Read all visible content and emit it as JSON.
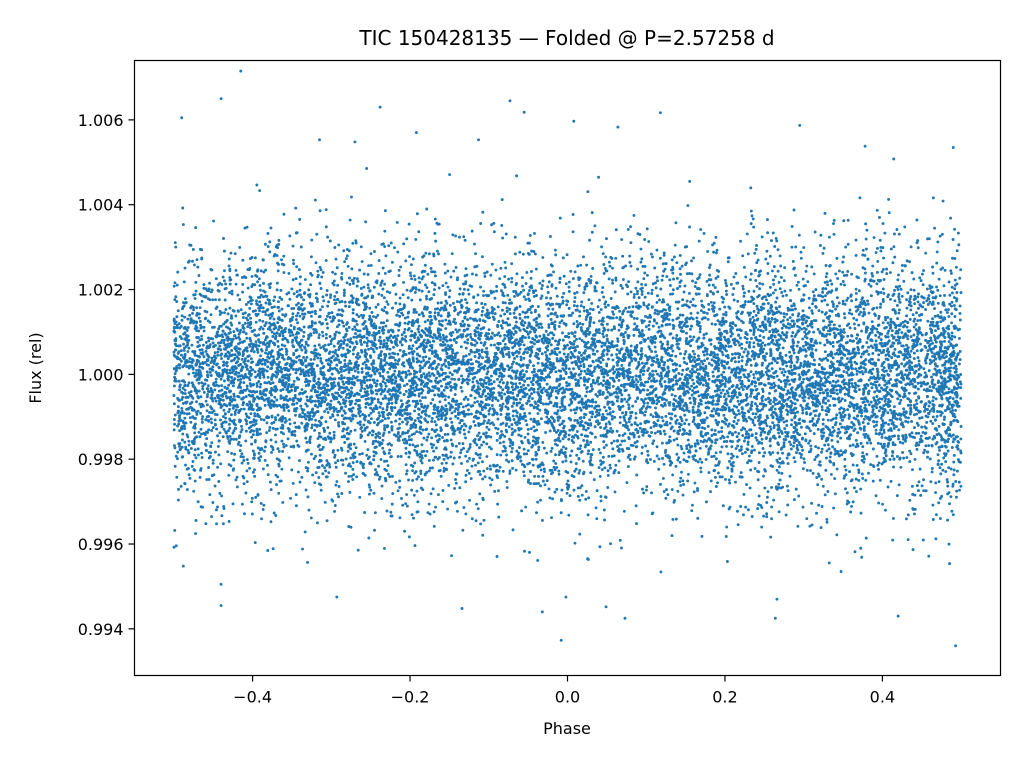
{
  "chart_data": {
    "type": "scatter",
    "title": "TIC 150428135 — Folded @ P=2.57258 d",
    "xlabel": "Phase",
    "ylabel": "Flux (rel)",
    "xlim": [
      -0.55,
      0.55
    ],
    "ylim": [
      0.9929,
      1.0074
    ],
    "x_ticks": [
      -0.4,
      -0.2,
      0.0,
      0.2,
      0.4
    ],
    "x_tick_labels": [
      "−0.4",
      "−0.2",
      "0.0",
      "0.2",
      "0.4"
    ],
    "y_ticks": [
      0.994,
      0.996,
      0.998,
      1.0,
      1.002,
      1.004,
      1.006
    ],
    "y_tick_labels": [
      "0.994",
      "0.996",
      "0.998",
      "1.000",
      "1.002",
      "1.004",
      "1.006"
    ],
    "grid": false,
    "legend": "none",
    "marker_color": "#1f77b4",
    "series": [
      {
        "points_description": "dense cloud of ~12000 folded photometric measurements, flat at 1.000 with scatter σ≈0.0014",
        "phase_range": [
          -0.5,
          0.5
        ],
        "flux_center": 1.0,
        "flux_scatter_sigma": 0.0014,
        "n_points": 12000,
        "outliers": [
          [
            -0.415,
            1.00715
          ],
          [
            -0.44,
            1.0065
          ],
          [
            -0.49,
            1.00605
          ],
          [
            -0.238,
            1.0063
          ],
          [
            -0.073,
            1.00645
          ],
          [
            -0.055,
            1.00618
          ],
          [
            0.008,
            1.00597
          ],
          [
            0.064,
            1.00583
          ],
          [
            0.118,
            1.00617
          ],
          [
            0.295,
            1.00587
          ],
          [
            0.378,
            1.00538
          ],
          [
            0.49,
            1.00535
          ],
          [
            -0.315,
            1.00553
          ],
          [
            -0.27,
            1.00548
          ],
          [
            -0.192,
            1.0057
          ],
          [
            -0.113,
            1.00553
          ],
          [
            -0.44,
            0.99455
          ],
          [
            -0.44,
            0.99505
          ],
          [
            -0.134,
            0.99448
          ],
          [
            -0.032,
            0.9944
          ],
          [
            -0.008,
            0.99373
          ],
          [
            -0.002,
            0.99475
          ],
          [
            0.049,
            0.99452
          ],
          [
            0.073,
            0.99425
          ],
          [
            0.264,
            0.99425
          ],
          [
            0.266,
            0.9947
          ],
          [
            0.42,
            0.9943
          ],
          [
            0.493,
            0.9936
          ],
          [
            -0.488,
            0.99548
          ],
          [
            -0.293,
            0.99475
          ]
        ]
      }
    ]
  }
}
